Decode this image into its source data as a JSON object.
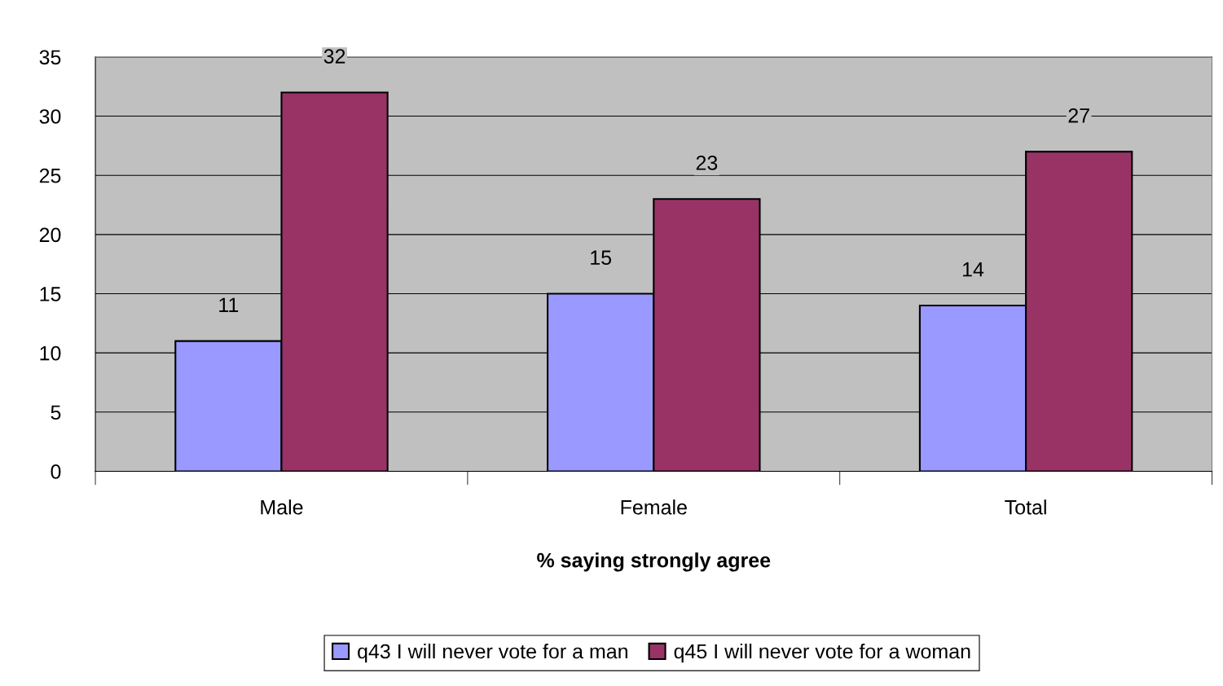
{
  "chart_data": {
    "type": "bar",
    "xlabel": "% saying strongly agree",
    "categories": [
      "Male",
      "Female",
      "Total"
    ],
    "series": [
      {
        "name": "q43 I will never vote for a man",
        "color": "#9999ff",
        "values": [
          11,
          15,
          14
        ]
      },
      {
        "name": "q45 I will never vote for a woman",
        "color": "#993366",
        "values": [
          32,
          23,
          27
        ]
      }
    ],
    "ylim": [
      0,
      35
    ],
    "yticks": [
      0,
      5,
      10,
      15,
      20,
      25,
      30,
      35
    ],
    "grid": "y",
    "legend": "bottom",
    "data_labels": true
  }
}
